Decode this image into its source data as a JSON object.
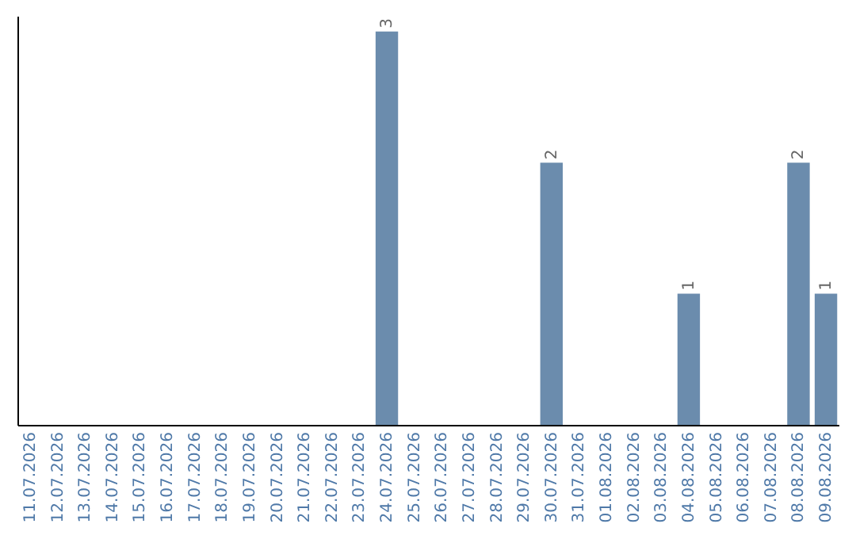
{
  "chart_data": {
    "type": "bar",
    "categories": [
      "11.07.2026",
      "12.07.2026",
      "13.07.2026",
      "14.07.2026",
      "15.07.2026",
      "16.07.2026",
      "17.07.2026",
      "18.07.2026",
      "19.07.2026",
      "20.07.2026",
      "21.07.2026",
      "22.07.2026",
      "23.07.2026",
      "24.07.2026",
      "25.07.2026",
      "26.07.2026",
      "27.07.2026",
      "28.07.2026",
      "29.07.2026",
      "30.07.2026",
      "31.07.2026",
      "01.08.2026",
      "02.08.2026",
      "03.08.2026",
      "04.08.2026",
      "05.08.2026",
      "06.08.2026",
      "07.08.2026",
      "08.08.2026",
      "09.08.2026"
    ],
    "values": [
      null,
      null,
      null,
      null,
      null,
      null,
      null,
      null,
      null,
      null,
      null,
      null,
      null,
      3,
      null,
      null,
      null,
      null,
      null,
      2,
      null,
      null,
      null,
      null,
      1,
      null,
      null,
      null,
      2,
      1
    ],
    "value_labels": [
      null,
      null,
      null,
      null,
      null,
      null,
      null,
      null,
      null,
      null,
      null,
      null,
      null,
      "3",
      null,
      null,
      null,
      null,
      null,
      "2",
      null,
      null,
      null,
      null,
      "1",
      null,
      null,
      null,
      "2",
      "1"
    ],
    "color": "#6b8cad",
    "tick_labels": "x",
    "grid": false
  }
}
